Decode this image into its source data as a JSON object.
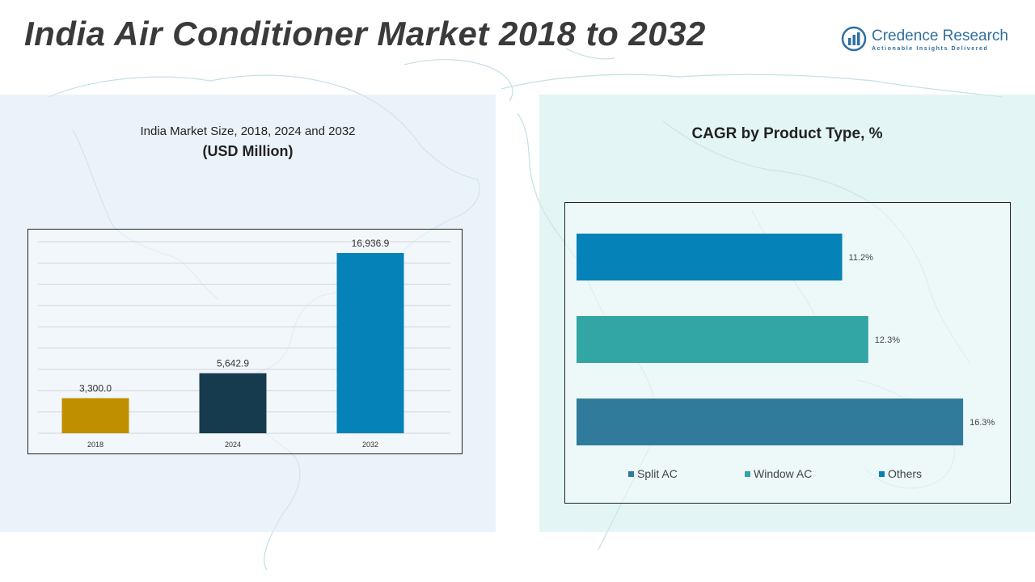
{
  "page": {
    "title": "India Air Conditioner Market 2018 to 2032"
  },
  "logo": {
    "name": "Credence Research",
    "tagline": "Actionable Insights Delivered",
    "icon": "bar-chart-logo-icon"
  },
  "colors": {
    "bar_2018": "#c08f00",
    "bar_2024": "#173b4e",
    "bar_2032": "#0582b7",
    "split_ac": "#307b9c",
    "window_ac": "#32a6a4",
    "others": "#0582b7"
  },
  "left_panel": {
    "title": "India Market Size, 2018, 2024 and 2032",
    "subtitle": "(USD Million)"
  },
  "right_panel": {
    "title": "CAGR by Product Type, %"
  },
  "chart_data": [
    {
      "type": "bar",
      "title": "India Market Size, 2018, 2024 and 2032",
      "subtitle": "(USD Million)",
      "categories": [
        "2018",
        "2024",
        "2032"
      ],
      "values": [
        3300.0,
        5642.9,
        16936.9
      ],
      "value_labels": [
        "3,300.0",
        "5,642.9",
        "16,936.9"
      ],
      "ylim": [
        0,
        18000
      ],
      "grid": true,
      "legend": "none"
    },
    {
      "type": "bar",
      "orientation": "horizontal",
      "title": "CAGR by Product Type, %",
      "categories": [
        "Others",
        "Window AC",
        "Split AC"
      ],
      "values": [
        11.2,
        12.3,
        16.3
      ],
      "value_labels": [
        "11.2%",
        "12.3%",
        "16.3%"
      ],
      "xlim": [
        0,
        18
      ],
      "grid": false,
      "legend": "bottom",
      "legend_entries": [
        "Split AC",
        "Window AC",
        "Others"
      ]
    }
  ]
}
